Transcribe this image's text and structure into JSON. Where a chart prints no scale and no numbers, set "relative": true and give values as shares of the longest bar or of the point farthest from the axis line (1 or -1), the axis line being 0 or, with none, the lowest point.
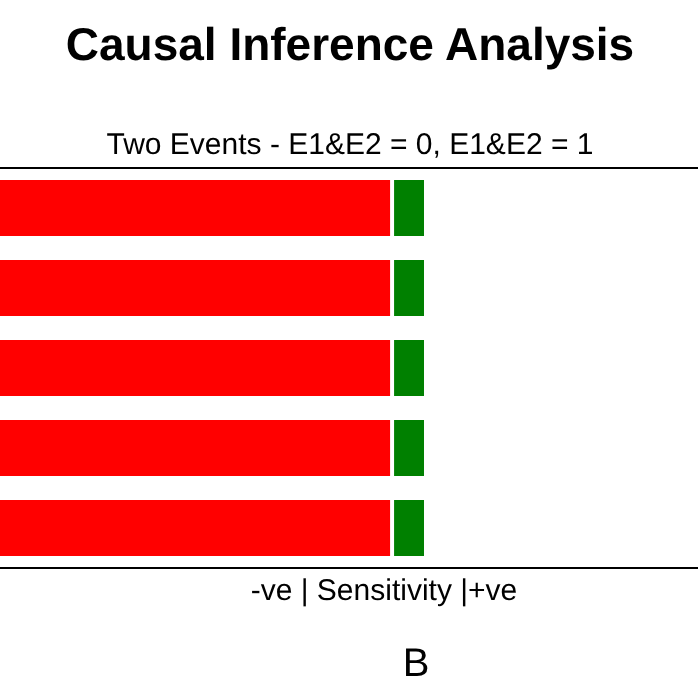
{
  "chart_data": {
    "type": "bar",
    "orientation": "horizontal",
    "stacked": true,
    "relative": true,
    "title": "Causal Inference Analysis",
    "subtitle": "Two Events  - E1&E2 = 0, E1&E2 = 1",
    "xlabel": "-ve | Sensitivity |+ve",
    "annotations": [
      "B"
    ],
    "categories": [
      null,
      null,
      null,
      null,
      null
    ],
    "series": [
      {
        "color": "#ff0000",
        "values": [
          0.92,
          0.92,
          0.92,
          0.92,
          0.92
        ]
      },
      {
        "color": "#008000",
        "values": [
          0.08,
          0.08,
          0.08,
          0.08,
          0.08
        ]
      }
    ]
  }
}
